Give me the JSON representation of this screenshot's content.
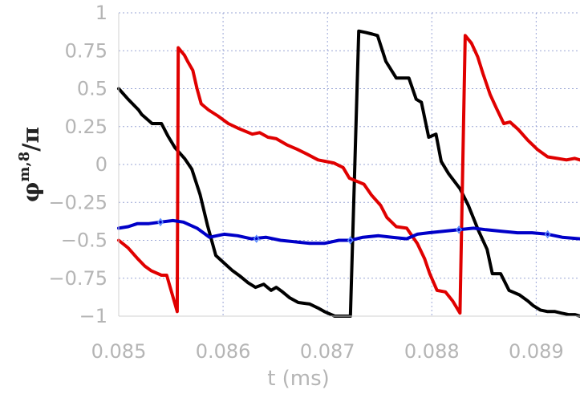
{
  "chart_data": {
    "type": "line",
    "title": "",
    "xlabel": "t (ms)",
    "ylabel_symbol": "φ",
    "ylabel_superscript": "m,8",
    "ylabel_denominator": "/π",
    "xlim": [
      0.085,
      0.08942
    ],
    "ylim": [
      -1,
      1
    ],
    "xticks": [
      0.085,
      0.086,
      0.087,
      0.088,
      0.089
    ],
    "xtick_labels": [
      "0.085",
      "0.086",
      "0.087",
      "0.088",
      "0.089"
    ],
    "yticks": [
      1,
      0.75,
      0.5,
      0.25,
      0,
      -0.25,
      -0.5,
      -0.75,
      -1
    ],
    "ytick_labels": [
      "1",
      "0.75",
      "0.5",
      "0.25",
      "0",
      "−0.25",
      "−0.5",
      "−0.75",
      "−1"
    ],
    "grid": true,
    "legend": "none",
    "series": [
      {
        "color": "#000000",
        "x": [
          0.085,
          0.08509,
          0.08519,
          0.08522,
          0.08532,
          0.08541,
          0.08547,
          0.08554,
          0.08563,
          0.0857,
          0.08578,
          0.08585,
          0.08593,
          0.08601,
          0.08609,
          0.08617,
          0.08624,
          0.08631,
          0.08639,
          0.08646,
          0.08651,
          0.08657,
          0.08664,
          0.08672,
          0.08683,
          0.08692,
          0.08697,
          0.08707,
          0.08713,
          0.08722,
          0.0873,
          0.08737,
          0.08743,
          0.08748,
          0.08756,
          0.08766,
          0.08778,
          0.08785,
          0.0879,
          0.08797,
          0.08804,
          0.08809,
          0.08816,
          0.08827,
          0.08835,
          0.08845,
          0.08853,
          0.08858,
          0.08866,
          0.08874,
          0.08884,
          0.08892,
          0.08897,
          0.08904,
          0.08911,
          0.08918,
          0.08924,
          0.08931,
          0.08937,
          0.08942
        ],
        "y": [
          0.5,
          0.43,
          0.36,
          0.33,
          0.27,
          0.27,
          0.19,
          0.11,
          0.04,
          -0.03,
          -0.2,
          -0.4,
          -0.6,
          -0.65,
          -0.7,
          -0.74,
          -0.78,
          -0.81,
          -0.79,
          -0.83,
          -0.81,
          -0.84,
          -0.88,
          -0.91,
          -0.92,
          -0.95,
          -0.97,
          -1.0,
          -1.0,
          -1.0,
          0.88,
          0.87,
          0.86,
          0.85,
          0.68,
          0.57,
          0.57,
          0.43,
          0.41,
          0.18,
          0.2,
          0.02,
          -0.06,
          -0.16,
          -0.27,
          -0.44,
          -0.56,
          -0.72,
          -0.72,
          -0.83,
          -0.86,
          -0.9,
          -0.93,
          -0.96,
          -0.97,
          -0.97,
          -0.98,
          -0.99,
          -0.99,
          -1.0
        ]
      },
      {
        "color": "#e00000",
        "x": [
          0.085,
          0.08509,
          0.08518,
          0.08525,
          0.08531,
          0.08541,
          0.08546,
          0.08556,
          0.08557,
          0.08563,
          0.08566,
          0.08571,
          0.08575,
          0.08579,
          0.08586,
          0.08595,
          0.08605,
          0.08614,
          0.08628,
          0.08635,
          0.08643,
          0.08651,
          0.08661,
          0.08671,
          0.0868,
          0.08691,
          0.08706,
          0.08715,
          0.08721,
          0.08728,
          0.08735,
          0.08742,
          0.08751,
          0.08757,
          0.08766,
          0.08776,
          0.08786,
          0.08793,
          0.08798,
          0.08805,
          0.08813,
          0.0882,
          0.08827,
          0.08832,
          0.08838,
          0.08844,
          0.08849,
          0.08856,
          0.08862,
          0.08869,
          0.08875,
          0.08883,
          0.08892,
          0.08901,
          0.08911,
          0.0892,
          0.08929,
          0.08937,
          0.08942
        ],
        "y": [
          -0.5,
          -0.55,
          -0.62,
          -0.67,
          -0.7,
          -0.73,
          -0.73,
          -0.97,
          0.77,
          0.72,
          0.68,
          0.62,
          0.5,
          0.4,
          0.36,
          0.32,
          0.27,
          0.24,
          0.2,
          0.21,
          0.18,
          0.17,
          0.13,
          0.1,
          0.07,
          0.03,
          0.01,
          -0.02,
          -0.09,
          -0.11,
          -0.13,
          -0.2,
          -0.27,
          -0.35,
          -0.41,
          -0.42,
          -0.52,
          -0.62,
          -0.72,
          -0.83,
          -0.84,
          -0.9,
          -0.98,
          0.85,
          0.8,
          0.71,
          0.6,
          0.46,
          0.37,
          0.27,
          0.28,
          0.23,
          0.16,
          0.1,
          0.05,
          0.04,
          0.03,
          0.04,
          0.03
        ]
      },
      {
        "color": "#0000c8",
        "marker_color": "#5a8cff",
        "x": [
          0.085,
          0.08509,
          0.08518,
          0.08529,
          0.0854,
          0.08552,
          0.08562,
          0.08575,
          0.08587,
          0.08601,
          0.08614,
          0.08627,
          0.08641,
          0.08655,
          0.08669,
          0.08683,
          0.08697,
          0.08711,
          0.08722,
          0.08734,
          0.08749,
          0.08762,
          0.08776,
          0.08786,
          0.08797,
          0.08811,
          0.08826,
          0.0884,
          0.08852,
          0.08867,
          0.08882,
          0.08896,
          0.08911,
          0.08925,
          0.08942
        ],
        "y": [
          -0.42,
          -0.41,
          -0.39,
          -0.39,
          -0.38,
          -0.37,
          -0.38,
          -0.42,
          -0.48,
          -0.46,
          -0.47,
          -0.49,
          -0.48,
          -0.5,
          -0.51,
          -0.52,
          -0.52,
          -0.5,
          -0.5,
          -0.48,
          -0.47,
          -0.48,
          -0.49,
          -0.46,
          -0.45,
          -0.44,
          -0.43,
          -0.42,
          -0.43,
          -0.44,
          -0.45,
          -0.45,
          -0.46,
          -0.48,
          -0.49
        ],
        "marker_x": [
          0.0854,
          0.08632,
          0.08722,
          0.08826,
          0.08911
        ],
        "marker_y": [
          -0.38,
          -0.49,
          -0.5,
          -0.43,
          -0.46
        ]
      }
    ]
  }
}
